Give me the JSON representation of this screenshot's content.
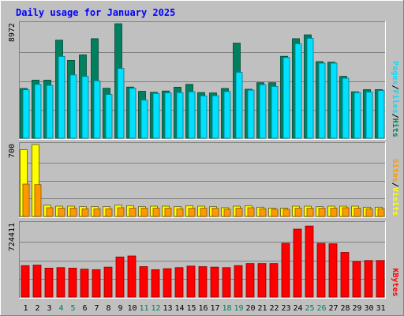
{
  "chart_data": {
    "type": "bar",
    "title": "Daily usage for January 2025",
    "categories": [
      "1",
      "2",
      "3",
      "4",
      "5",
      "6",
      "7",
      "8",
      "9",
      "10",
      "11",
      "12",
      "13",
      "14",
      "15",
      "16",
      "17",
      "18",
      "19",
      "20",
      "21",
      "22",
      "23",
      "24",
      "25",
      "26",
      "27",
      "28",
      "29",
      "30",
      "31"
    ],
    "weekend_days": [
      "4",
      "5",
      "11",
      "12",
      "18",
      "19",
      "25",
      "26"
    ],
    "panels": [
      {
        "name": "top",
        "ymax": 8972,
        "ymax_label": "8972",
        "series": [
          {
            "name": "Hits",
            "color": "#00805f",
            "values": [
              3900,
              4550,
              4550,
              7680,
              6100,
              6530,
              7800,
              3920,
              8972,
              4010,
              3680,
              3600,
              3700,
              4000,
              4220,
              3580,
              3550,
              3900,
              7450,
              3840,
              4350,
              4350,
              6420,
              7800,
              8100,
              6000,
              5960,
              4850,
              3640,
              3810,
              3810
            ]
          },
          {
            "name": "Files",
            "color": "#00e0ff",
            "values": [
              3800,
              4220,
              4140,
              6410,
              4960,
              4840,
              4500,
              3430,
              5470,
              3920,
              2990,
              3510,
              3560,
              3580,
              3640,
              3320,
              3330,
              3660,
              5170,
              3770,
              4200,
              4060,
              6330,
              7400,
              7830,
              5880,
              5880,
              4700,
              3580,
              3620,
              3740
            ]
          },
          {
            "name": "Pages",
            "color": "#00e0ff",
            "values": [
              0,
              0,
              0,
              0,
              0,
              0,
              0,
              0,
              0,
              0,
              0,
              0,
              0,
              0,
              0,
              0,
              0,
              0,
              0,
              0,
              0,
              0,
              0,
              0,
              0,
              0,
              0,
              0,
              0,
              0,
              0
            ]
          }
        ],
        "legend": [
          "Hits",
          "/",
          "Files",
          "/",
          "Pages"
        ],
        "legend_colors": [
          "#00805f",
          "#000000",
          "#00e0ff",
          "#000000",
          "#00e0ff"
        ]
      },
      {
        "name": "middle",
        "ymax": 700,
        "ymax_label": "700",
        "series": [
          {
            "name": "Visits",
            "color": "#ffff00",
            "values": [
              650,
              700,
              110,
              100,
              100,
              95,
              95,
              95,
              110,
              105,
              95,
              100,
              100,
              95,
              105,
              100,
              95,
              85,
              100,
              105,
              90,
              80,
              80,
              100,
              100,
              95,
              100,
              100,
              100,
              90,
              90
            ]
          },
          {
            "name": "Sites",
            "color": "#ff9900",
            "values": [
              315,
              310,
              85,
              80,
              80,
              75,
              75,
              75,
              85,
              80,
              80,
              80,
              80,
              75,
              80,
              80,
              80,
              70,
              80,
              85,
              75,
              70,
              70,
              80,
              80,
              80,
              80,
              85,
              80,
              75,
              75
            ]
          }
        ],
        "legend": [
          "Visits",
          "/",
          "Sites"
        ],
        "legend_colors": [
          "#ffff00",
          "#000000",
          "#ff9900"
        ]
      },
      {
        "name": "bottom",
        "ymax": 724411,
        "ymax_label": "724411",
        "series": [
          {
            "name": "KBytes",
            "color": "#ff0000",
            "values": [
              310000,
              315000,
              285000,
              290000,
              285000,
              275000,
              270000,
              295000,
              395000,
              405000,
              300000,
              270000,
              280000,
              290000,
              305000,
              300000,
              295000,
              290000,
              310000,
              330000,
              330000,
              330000,
              530000,
              670000,
              700000,
              530000,
              525000,
              440000,
              350000,
              360000,
              360000
            ]
          }
        ],
        "legend": [
          "KBytes"
        ],
        "legend_colors": [
          "#ff0000"
        ]
      }
    ]
  }
}
